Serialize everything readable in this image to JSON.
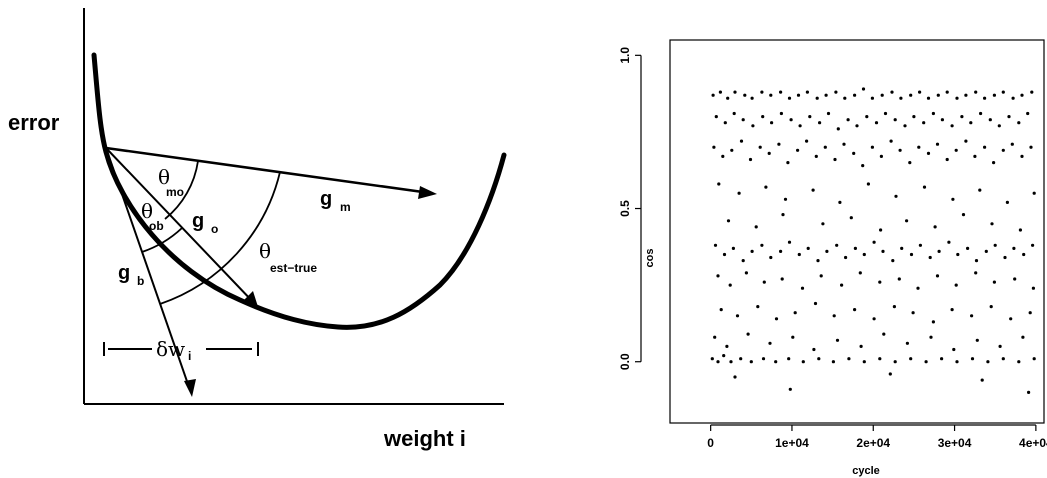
{
  "left_figure": {
    "y_axis_label": "error",
    "x_axis_label": "weight i",
    "theta_symbol": "θ",
    "delta_symbol": "δw",
    "labels": {
      "theta_mo_sub": "mo",
      "theta_ob_sub": "ob",
      "theta_est_true_sub": "est−true",
      "g_m": "g",
      "g_m_sub": "m",
      "g_o": "g",
      "g_o_sub": "o",
      "g_b": "g",
      "g_b_sub": "b",
      "delta_w_sub": "i"
    }
  },
  "chart_data": {
    "type": "scatter",
    "title": "",
    "xlabel": "cycle",
    "ylabel": "cos",
    "xlim": [
      -5000,
      41000
    ],
    "ylim": [
      -0.2,
      1.05
    ],
    "x_ticks": [
      0,
      10000,
      20000,
      30000,
      40000
    ],
    "x_tick_labels": [
      "0",
      "1e+04",
      "2e+04",
      "3e+04",
      "4e+04"
    ],
    "y_ticks": [
      0.0,
      0.5,
      1.0
    ],
    "y_tick_labels": [
      "0.0",
      "0.5",
      "1.0"
    ],
    "points": [
      [
        300,
        0.87
      ],
      [
        1200,
        0.88
      ],
      [
        2100,
        0.86
      ],
      [
        3000,
        0.88
      ],
      [
        4200,
        0.87
      ],
      [
        5100,
        0.86
      ],
      [
        6300,
        0.88
      ],
      [
        7400,
        0.87
      ],
      [
        8600,
        0.88
      ],
      [
        9700,
        0.86
      ],
      [
        10800,
        0.87
      ],
      [
        11900,
        0.88
      ],
      [
        13100,
        0.86
      ],
      [
        14200,
        0.87
      ],
      [
        15400,
        0.88
      ],
      [
        16500,
        0.86
      ],
      [
        17700,
        0.87
      ],
      [
        18800,
        0.89
      ],
      [
        19900,
        0.86
      ],
      [
        21100,
        0.87
      ],
      [
        22300,
        0.88
      ],
      [
        23400,
        0.86
      ],
      [
        24600,
        0.87
      ],
      [
        25700,
        0.88
      ],
      [
        26800,
        0.86
      ],
      [
        28000,
        0.87
      ],
      [
        29100,
        0.88
      ],
      [
        30300,
        0.86
      ],
      [
        31400,
        0.87
      ],
      [
        32600,
        0.88
      ],
      [
        33700,
        0.86
      ],
      [
        34900,
        0.87
      ],
      [
        36000,
        0.88
      ],
      [
        37200,
        0.86
      ],
      [
        38300,
        0.87
      ],
      [
        39500,
        0.88
      ],
      [
        700,
        0.8
      ],
      [
        1800,
        0.78
      ],
      [
        2900,
        0.81
      ],
      [
        4000,
        0.79
      ],
      [
        5200,
        0.77
      ],
      [
        6400,
        0.8
      ],
      [
        7500,
        0.78
      ],
      [
        8700,
        0.81
      ],
      [
        9900,
        0.79
      ],
      [
        11000,
        0.77
      ],
      [
        12200,
        0.8
      ],
      [
        13400,
        0.78
      ],
      [
        14500,
        0.81
      ],
      [
        15700,
        0.76
      ],
      [
        16900,
        0.79
      ],
      [
        18000,
        0.77
      ],
      [
        19200,
        0.8
      ],
      [
        20400,
        0.78
      ],
      [
        21500,
        0.81
      ],
      [
        22700,
        0.79
      ],
      [
        23900,
        0.77
      ],
      [
        25000,
        0.8
      ],
      [
        26200,
        0.78
      ],
      [
        27400,
        0.81
      ],
      [
        28500,
        0.79
      ],
      [
        29700,
        0.77
      ],
      [
        30900,
        0.8
      ],
      [
        32000,
        0.78
      ],
      [
        33200,
        0.81
      ],
      [
        34400,
        0.79
      ],
      [
        35500,
        0.77
      ],
      [
        36700,
        0.8
      ],
      [
        37900,
        0.78
      ],
      [
        39000,
        0.81
      ],
      [
        400,
        0.7
      ],
      [
        1500,
        0.67
      ],
      [
        2600,
        0.69
      ],
      [
        3800,
        0.72
      ],
      [
        4900,
        0.66
      ],
      [
        6100,
        0.7
      ],
      [
        7200,
        0.68
      ],
      [
        8400,
        0.71
      ],
      [
        9500,
        0.65
      ],
      [
        10700,
        0.69
      ],
      [
        11800,
        0.72
      ],
      [
        13000,
        0.67
      ],
      [
        14100,
        0.7
      ],
      [
        15300,
        0.66
      ],
      [
        16400,
        0.71
      ],
      [
        17600,
        0.68
      ],
      [
        18700,
        0.64
      ],
      [
        19900,
        0.7
      ],
      [
        21000,
        0.67
      ],
      [
        22200,
        0.72
      ],
      [
        23300,
        0.69
      ],
      [
        24500,
        0.65
      ],
      [
        25600,
        0.7
      ],
      [
        26800,
        0.68
      ],
      [
        27900,
        0.71
      ],
      [
        29100,
        0.66
      ],
      [
        30200,
        0.69
      ],
      [
        31400,
        0.72
      ],
      [
        32500,
        0.67
      ],
      [
        33700,
        0.7
      ],
      [
        34800,
        0.65
      ],
      [
        36000,
        0.69
      ],
      [
        37100,
        0.71
      ],
      [
        38300,
        0.67
      ],
      [
        39400,
        0.7
      ],
      [
        1000,
        0.58
      ],
      [
        3500,
        0.55
      ],
      [
        6800,
        0.57
      ],
      [
        9200,
        0.53
      ],
      [
        12600,
        0.56
      ],
      [
        15900,
        0.52
      ],
      [
        19400,
        0.58
      ],
      [
        22800,
        0.54
      ],
      [
        26300,
        0.57
      ],
      [
        29800,
        0.53
      ],
      [
        33100,
        0.56
      ],
      [
        36500,
        0.52
      ],
      [
        39800,
        0.55
      ],
      [
        2200,
        0.46
      ],
      [
        5600,
        0.44
      ],
      [
        8900,
        0.48
      ],
      [
        13800,
        0.45
      ],
      [
        17300,
        0.47
      ],
      [
        20900,
        0.43
      ],
      [
        24100,
        0.46
      ],
      [
        27600,
        0.44
      ],
      [
        31100,
        0.48
      ],
      [
        34600,
        0.45
      ],
      [
        38100,
        0.43
      ],
      [
        600,
        0.38
      ],
      [
        1700,
        0.35
      ],
      [
        2800,
        0.37
      ],
      [
        4000,
        0.33
      ],
      [
        5100,
        0.36
      ],
      [
        6300,
        0.38
      ],
      [
        7400,
        0.34
      ],
      [
        8600,
        0.36
      ],
      [
        9700,
        0.39
      ],
      [
        10900,
        0.35
      ],
      [
        12000,
        0.37
      ],
      [
        13200,
        0.33
      ],
      [
        14300,
        0.36
      ],
      [
        15500,
        0.38
      ],
      [
        16600,
        0.34
      ],
      [
        17800,
        0.37
      ],
      [
        18900,
        0.35
      ],
      [
        20100,
        0.39
      ],
      [
        21200,
        0.36
      ],
      [
        22400,
        0.33
      ],
      [
        23500,
        0.37
      ],
      [
        24700,
        0.35
      ],
      [
        25800,
        0.38
      ],
      [
        27000,
        0.34
      ],
      [
        28100,
        0.36
      ],
      [
        29300,
        0.39
      ],
      [
        30400,
        0.35
      ],
      [
        31600,
        0.37
      ],
      [
        32700,
        0.33
      ],
      [
        33900,
        0.36
      ],
      [
        35000,
        0.38
      ],
      [
        36200,
        0.34
      ],
      [
        37300,
        0.37
      ],
      [
        38500,
        0.35
      ],
      [
        39600,
        0.38
      ],
      [
        900,
        0.28
      ],
      [
        2400,
        0.25
      ],
      [
        4400,
        0.29
      ],
      [
        6600,
        0.26
      ],
      [
        8800,
        0.27
      ],
      [
        11300,
        0.24
      ],
      [
        13600,
        0.28
      ],
      [
        16100,
        0.25
      ],
      [
        18400,
        0.29
      ],
      [
        20800,
        0.26
      ],
      [
        23200,
        0.27
      ],
      [
        25500,
        0.24
      ],
      [
        27900,
        0.28
      ],
      [
        30200,
        0.25
      ],
      [
        32600,
        0.29
      ],
      [
        34900,
        0.26
      ],
      [
        37400,
        0.27
      ],
      [
        39700,
        0.24
      ],
      [
        1300,
        0.17
      ],
      [
        3300,
        0.15
      ],
      [
        5800,
        0.18
      ],
      [
        8100,
        0.14
      ],
      [
        10400,
        0.16
      ],
      [
        12900,
        0.19
      ],
      [
        15200,
        0.15
      ],
      [
        17700,
        0.17
      ],
      [
        20100,
        0.14
      ],
      [
        22600,
        0.18
      ],
      [
        24900,
        0.16
      ],
      [
        27400,
        0.13
      ],
      [
        29700,
        0.17
      ],
      [
        32100,
        0.15
      ],
      [
        34500,
        0.18
      ],
      [
        36900,
        0.14
      ],
      [
        39300,
        0.16
      ],
      [
        500,
        0.08
      ],
      [
        2000,
        0.05
      ],
      [
        4600,
        0.09
      ],
      [
        7300,
        0.06
      ],
      [
        10100,
        0.08
      ],
      [
        12700,
        0.04
      ],
      [
        15600,
        0.07
      ],
      [
        18500,
        0.05
      ],
      [
        21300,
        0.09
      ],
      [
        24200,
        0.06
      ],
      [
        27100,
        0.08
      ],
      [
        29900,
        0.04
      ],
      [
        32800,
        0.07
      ],
      [
        35600,
        0.05
      ],
      [
        38400,
        0.08
      ],
      [
        200,
        0.01
      ],
      [
        900,
        0.0
      ],
      [
        1600,
        0.02
      ],
      [
        2500,
        0.0
      ],
      [
        3700,
        0.01
      ],
      [
        5000,
        0.0
      ],
      [
        6500,
        0.01
      ],
      [
        8000,
        0.0
      ],
      [
        9600,
        0.01
      ],
      [
        11400,
        0.0
      ],
      [
        13300,
        0.01
      ],
      [
        15100,
        0.0
      ],
      [
        17000,
        0.01
      ],
      [
        18900,
        0.0
      ],
      [
        20800,
        0.01
      ],
      [
        22700,
        0.0
      ],
      [
        24600,
        0.01
      ],
      [
        26500,
        0.0
      ],
      [
        28400,
        0.01
      ],
      [
        30300,
        0.0
      ],
      [
        32200,
        0.01
      ],
      [
        34100,
        0.0
      ],
      [
        36000,
        0.01
      ],
      [
        37900,
        0.0
      ],
      [
        39800,
        0.01
      ],
      [
        3000,
        -0.05
      ],
      [
        9800,
        -0.09
      ],
      [
        22100,
        -0.04
      ],
      [
        33400,
        -0.06
      ],
      [
        39100,
        -0.1
      ]
    ]
  }
}
